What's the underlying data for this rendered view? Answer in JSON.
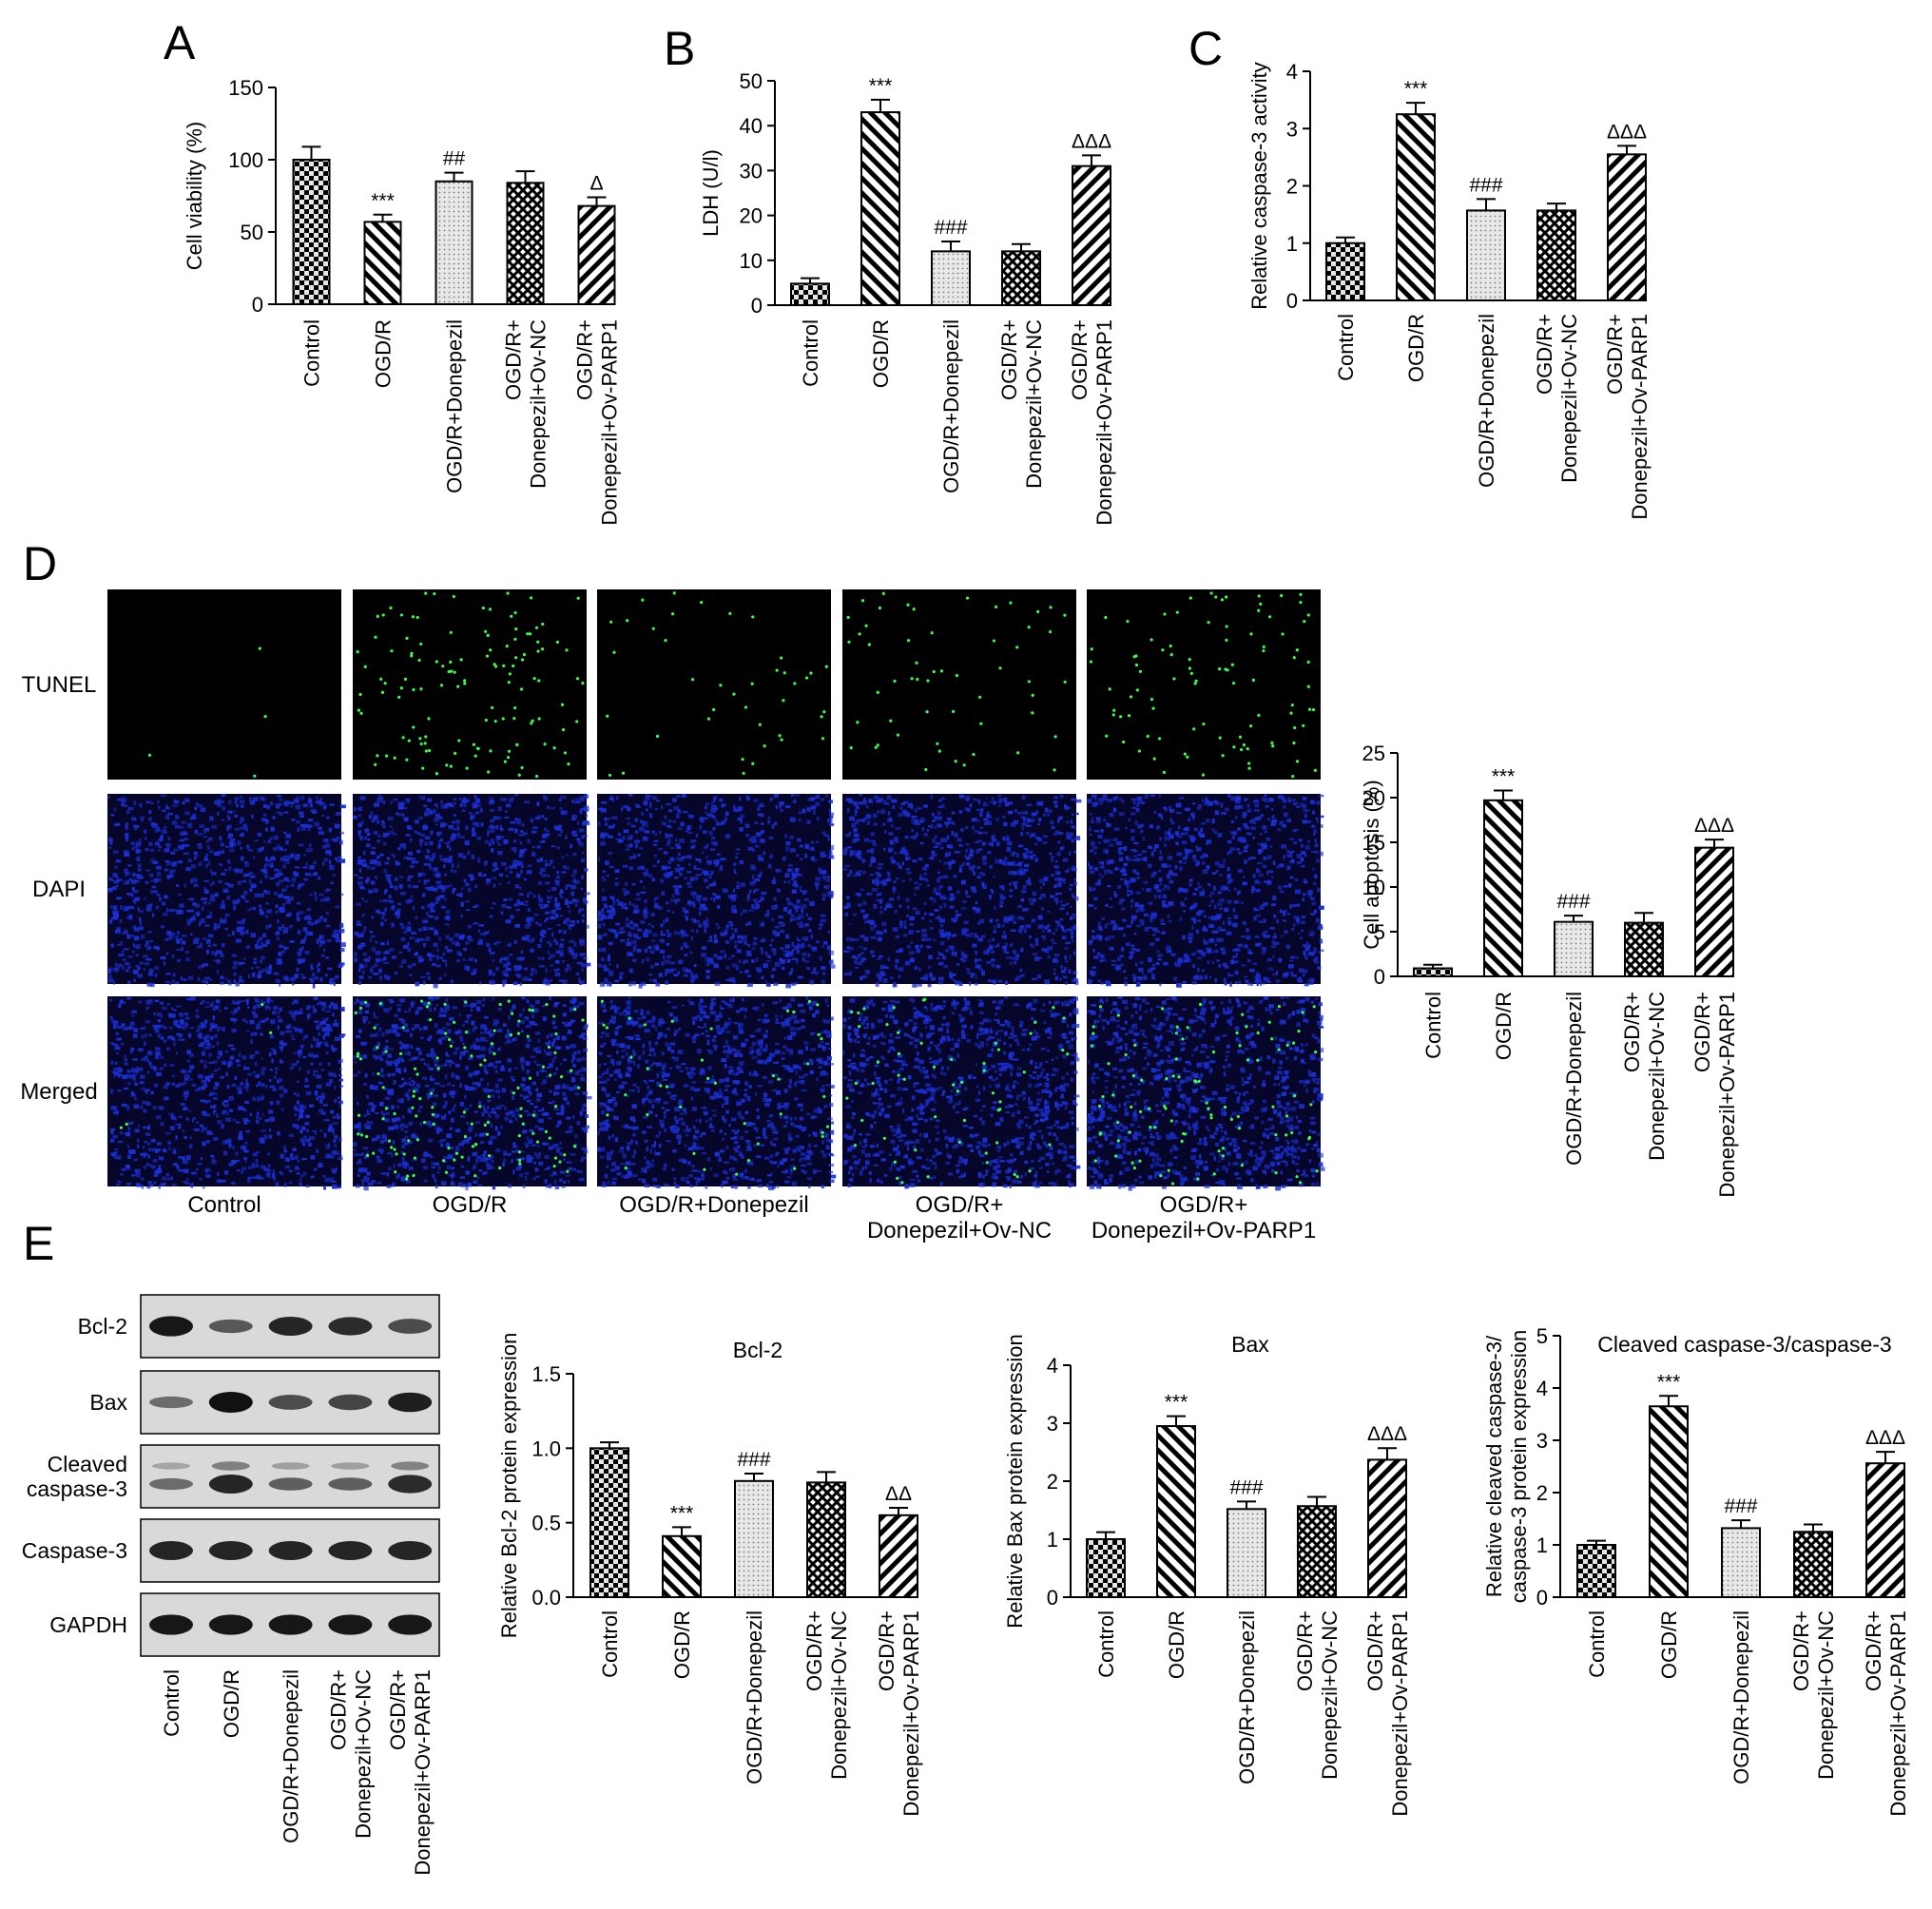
{
  "groups": [
    "Control",
    "OGD/R",
    "OGD/R+Donepezil",
    "OGD/R+\nDonepezil+Ov-NC",
    "OGD/R+\nDonepezil+Ov-PARP1"
  ],
  "colors": {
    "fill_light": "#e6e6e6",
    "fill_mid": "#bdbdbd",
    "ink": "#000000",
    "dapi_blue": "#1a2fd8",
    "tunel_green": "#39ff4a"
  },
  "panel_labels": {
    "A": "A",
    "B": "B",
    "C": "C",
    "D": "D",
    "E": "E"
  },
  "panel_d": {
    "rows": [
      "TUNEL",
      "DAPI",
      "Merged"
    ],
    "columns": [
      "Control",
      "OGD/R",
      "OGD/R+Donepezil",
      "OGD/R+\nDonepezil+Ov-NC",
      "OGD/R+\nDonepezil+Ov-PARP1"
    ],
    "tunel_density": [
      4,
      130,
      40,
      55,
      95
    ]
  },
  "panel_e_blot": {
    "rows": [
      "Bcl-2",
      "Bax",
      "Cleaved\ncaspase-3",
      "Caspase-3",
      "GAPDH"
    ],
    "band_intensity": [
      [
        0.95,
        0.45,
        0.85,
        0.8,
        0.55
      ],
      [
        0.3,
        1.0,
        0.55,
        0.6,
        0.9
      ],
      [
        0.3,
        0.85,
        0.4,
        0.4,
        0.8
      ],
      [
        0.85,
        0.85,
        0.85,
        0.85,
        0.85
      ],
      [
        0.95,
        0.95,
        0.95,
        0.95,
        0.95
      ]
    ]
  },
  "chart_data": [
    {
      "id": "A",
      "type": "bar",
      "title": "",
      "ylabel": "Cell viability (%)",
      "categories": [
        "Control",
        "OGD/R",
        "OGD/R+Donepezil",
        "OGD/R+\nDonepezil+Ov-NC",
        "OGD/R+\nDonepezil+Ov-PARP1"
      ],
      "values": [
        100,
        57,
        85,
        84,
        68
      ],
      "errors": [
        9,
        5,
        6,
        8,
        6
      ],
      "significance": [
        "",
        "***",
        "##",
        "",
        "Δ"
      ],
      "ylim": [
        0,
        150
      ],
      "yticks": [
        "0",
        "50",
        "100",
        "150"
      ]
    },
    {
      "id": "B",
      "type": "bar",
      "title": "",
      "ylabel": "LDH (U/l)",
      "categories": [
        "Control",
        "OGD/R",
        "OGD/R+Donepezil",
        "OGD/R+\nDonepezil+Ov-NC",
        "OGD/R+\nDonepezil+Ov-PARP1"
      ],
      "values": [
        4.8,
        43,
        12,
        12,
        31
      ],
      "errors": [
        1.2,
        2.8,
        2.2,
        1.6,
        2.4
      ],
      "significance": [
        "",
        "***",
        "###",
        "",
        "ΔΔΔ"
      ],
      "ylim": [
        0,
        50
      ],
      "yticks": [
        "0",
        "10",
        "20",
        "30",
        "40",
        "50"
      ]
    },
    {
      "id": "C",
      "type": "bar",
      "title": "",
      "ylabel": "Relative caspase-3 activity",
      "categories": [
        "Control",
        "OGD/R",
        "OGD/R+Donepezil",
        "OGD/R+\nDonepezil+Ov-NC",
        "OGD/R+\nDonepezil+Ov-PARP1"
      ],
      "values": [
        1.0,
        3.25,
        1.57,
        1.57,
        2.55
      ],
      "errors": [
        0.1,
        0.2,
        0.2,
        0.12,
        0.15
      ],
      "significance": [
        "",
        "***",
        "###",
        "",
        "ΔΔΔ"
      ],
      "ylim": [
        0,
        4
      ],
      "yticks": [
        "0",
        "1",
        "2",
        "3",
        "4"
      ]
    },
    {
      "id": "D",
      "type": "bar",
      "title": "",
      "ylabel": "Cell apoptosis (%)",
      "categories": [
        "Control",
        "OGD/R",
        "OGD/R+Donepezil",
        "OGD/R+\nDonepezil+Ov-NC",
        "OGD/R+\nDonepezil+Ov-PARP1"
      ],
      "values": [
        0.9,
        19.7,
        6.1,
        6.0,
        14.4
      ],
      "errors": [
        0.4,
        1.1,
        0.7,
        1.1,
        0.9
      ],
      "significance": [
        "",
        "***",
        "###",
        "",
        "ΔΔΔ"
      ],
      "ylim": [
        0,
        25
      ],
      "yticks": [
        "0",
        "5",
        "10",
        "15",
        "20",
        "25"
      ]
    },
    {
      "id": "E1",
      "type": "bar",
      "title": "Bcl-2",
      "ylabel": "Relative Bcl-2 protein expression",
      "categories": [
        "Control",
        "OGD/R",
        "OGD/R+Donepezil",
        "OGD/R+\nDonepezil+Ov-NC",
        "OGD/R+\nDonepezil+Ov-PARP1"
      ],
      "values": [
        1.0,
        0.41,
        0.78,
        0.77,
        0.55
      ],
      "errors": [
        0.04,
        0.06,
        0.05,
        0.07,
        0.05
      ],
      "significance": [
        "",
        "***",
        "###",
        "",
        "ΔΔ"
      ],
      "ylim": [
        0,
        1.5
      ],
      "yticks": [
        "0.0",
        "0.5",
        "1.0",
        "1.5"
      ]
    },
    {
      "id": "E2",
      "type": "bar",
      "title": "Bax",
      "ylabel": "Relative Bax protein expression",
      "categories": [
        "Control",
        "OGD/R",
        "OGD/R+Donepezil",
        "OGD/R+\nDonepezil+Ov-NC",
        "OGD/R+\nDonepezil+Ov-PARP1"
      ],
      "values": [
        1.0,
        2.95,
        1.52,
        1.57,
        2.37
      ],
      "errors": [
        0.12,
        0.17,
        0.13,
        0.16,
        0.2
      ],
      "significance": [
        "",
        "***",
        "###",
        "",
        "ΔΔΔ"
      ],
      "ylim": [
        0,
        4
      ],
      "yticks": [
        "0",
        "1",
        "2",
        "3",
        "4"
      ]
    },
    {
      "id": "E3",
      "type": "bar",
      "title": "Cleaved caspase-3/caspase-3",
      "ylabel": "Relative cleaved caspase-3/\ncaspase-3 protein expression",
      "categories": [
        "Control",
        "OGD/R",
        "OGD/R+Donepezil",
        "OGD/R+\nDonepezil+Ov-NC",
        "OGD/R+\nDonepezil+Ov-PARP1"
      ],
      "values": [
        1.0,
        3.65,
        1.32,
        1.25,
        2.56
      ],
      "errors": [
        0.08,
        0.2,
        0.15,
        0.14,
        0.22
      ],
      "significance": [
        "",
        "***",
        "###",
        "",
        "ΔΔΔ"
      ],
      "ylim": [
        0,
        5
      ],
      "yticks": [
        "0",
        "1",
        "2",
        "3",
        "4",
        "5"
      ]
    }
  ]
}
